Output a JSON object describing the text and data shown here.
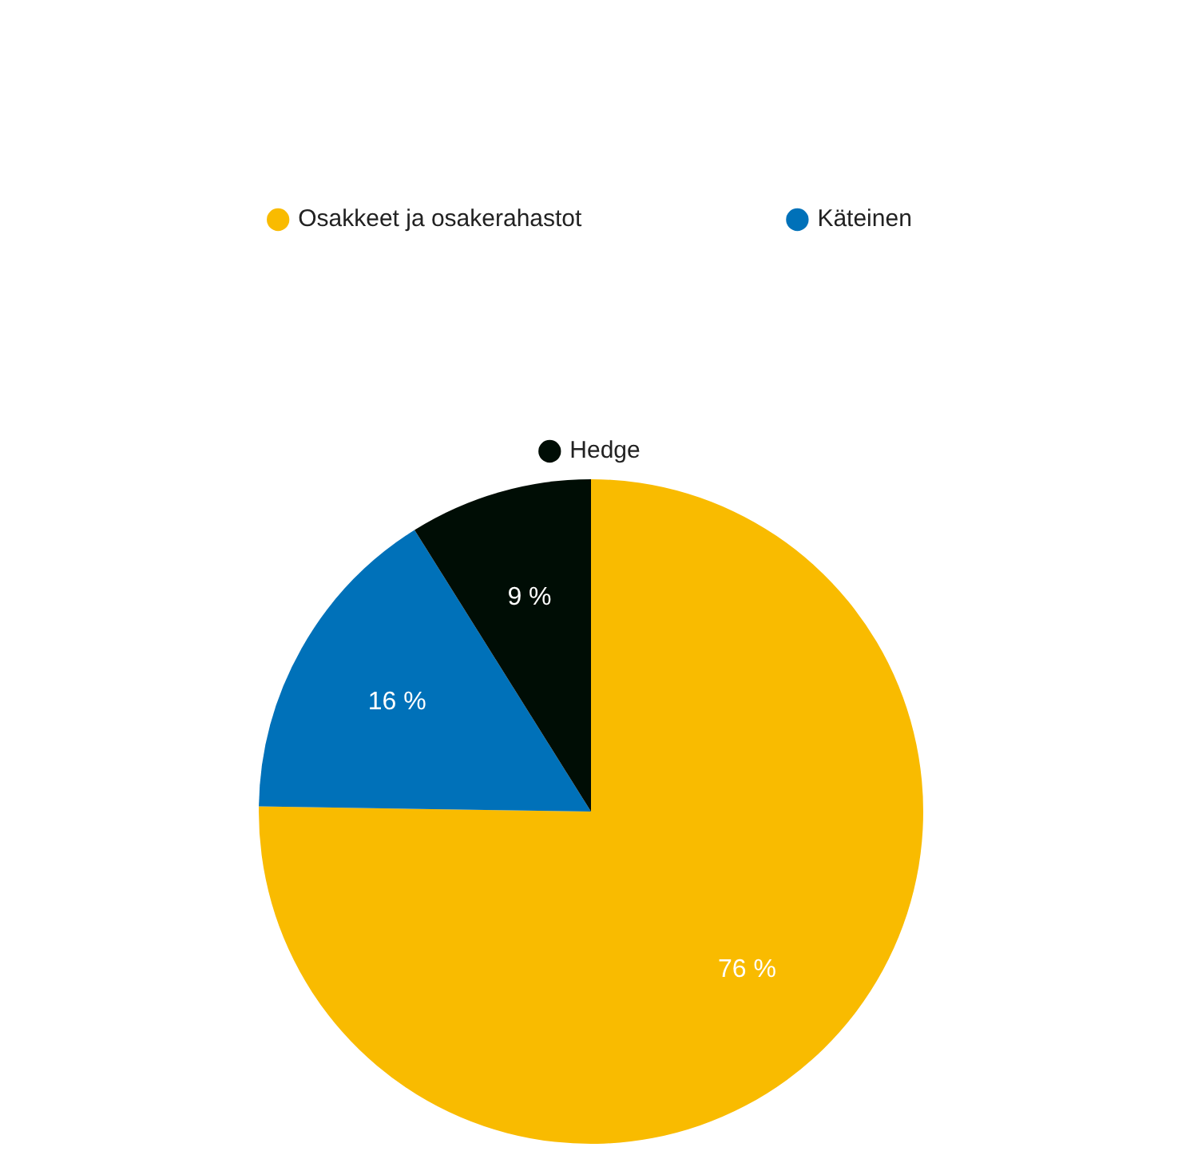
{
  "chart_data": {
    "type": "pie",
    "categories": [
      "Osakkeet ja osakerahastot",
      "Käteinen",
      "Hedge"
    ],
    "values": [
      76,
      16,
      9
    ],
    "colors": [
      "#f9bb00",
      "#0071b9",
      "#000d05"
    ],
    "value_labels": [
      "76 %",
      "16 %",
      "9 %"
    ],
    "legend": "top"
  }
}
